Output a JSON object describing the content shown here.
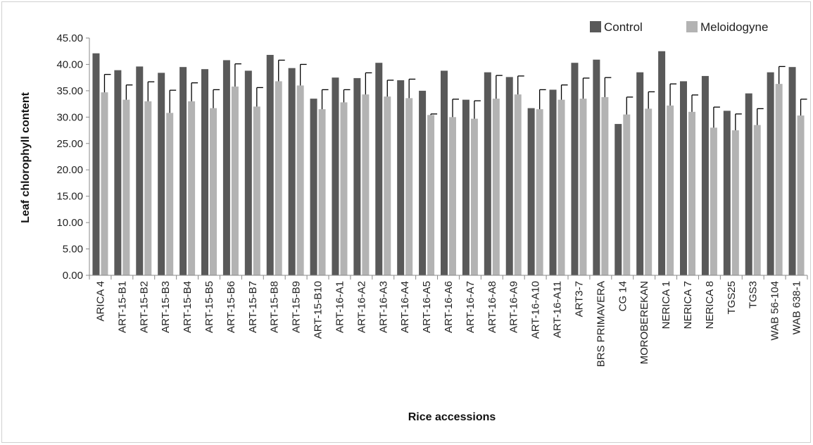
{
  "chart_data": {
    "type": "bar",
    "title": "",
    "xlabel": "Rice accessions",
    "ylabel": "Leaf chlorophyll content",
    "ylim": [
      0,
      45
    ],
    "yticks": [
      "0.00",
      "5.00",
      "10.00",
      "15.00",
      "20.00",
      "25.00",
      "30.00",
      "35.00",
      "40.00",
      "45.00"
    ],
    "grid": false,
    "legend": "top-right",
    "error_bars": "upper",
    "categories": [
      "ARICA 4",
      "ART-15-B1",
      "ART-15-B2",
      "ART-15-B3",
      "ART-15-B4",
      "ART-15-B5",
      "ART-15-B6",
      "ART-15-B7",
      "ART-15-B8",
      "ART-15-B9",
      "ART-15-B10",
      "ART-16-A1",
      "ART-16-A2",
      "ART-16-A3",
      "ART-16-A4",
      "ART-16-A5",
      "ART-16-A6",
      "ART-16-A7",
      "ART-16-A8",
      "ART-16-A9",
      "ART-16-A10",
      "ART-16-A11",
      "ART3-7",
      "BRS PRIMAVERA",
      "CG 14",
      "MOROBEREKAN",
      "NERICA 1",
      "NERICA 7",
      "NERICA 8",
      "TGS25",
      "TGS3",
      "WAB 56-104",
      "WAB 638-1"
    ],
    "series": [
      {
        "name": "Control",
        "color": "#595959",
        "values": [
          42.1,
          38.9,
          39.6,
          38.4,
          39.5,
          39.1,
          40.8,
          38.8,
          41.8,
          39.3,
          33.5,
          37.5,
          37.4,
          40.3,
          37.0,
          35.0,
          38.8,
          33.3,
          38.5,
          37.6,
          31.7,
          35.2,
          40.3,
          40.9,
          28.7,
          38.5,
          42.5,
          36.8,
          37.8,
          31.2,
          34.5,
          38.5,
          39.5
        ],
        "errors": [
          null,
          null,
          null,
          null,
          null,
          null,
          null,
          null,
          null,
          null,
          null,
          null,
          null,
          null,
          null,
          null,
          null,
          null,
          null,
          null,
          null,
          null,
          null,
          null,
          null,
          null,
          null,
          null,
          null,
          null,
          null,
          null,
          null
        ]
      },
      {
        "name": "Meloidogyne",
        "color": "#b3b3b3",
        "values": [
          34.7,
          33.3,
          33.0,
          30.8,
          33.0,
          31.7,
          35.8,
          32.0,
          36.8,
          36.0,
          31.5,
          32.8,
          34.3,
          33.9,
          33.6,
          30.4,
          30.0,
          29.7,
          33.5,
          34.3,
          31.5,
          33.3,
          33.5,
          33.8,
          30.5,
          31.6,
          32.2,
          31.0,
          28.0,
          27.5,
          28.5,
          36.3,
          30.3
        ],
        "errors": [
          3.4,
          2.8,
          3.7,
          4.3,
          3.5,
          3.5,
          4.3,
          3.6,
          4.0,
          4.0,
          3.7,
          2.4,
          4.1,
          3.1,
          3.6,
          0.2,
          3.4,
          3.4,
          4.4,
          3.5,
          3.7,
          2.8,
          3.9,
          3.7,
          3.3,
          3.2,
          4.1,
          3.2,
          3.9,
          3.1,
          3.1,
          3.3,
          3.1
        ]
      }
    ]
  }
}
